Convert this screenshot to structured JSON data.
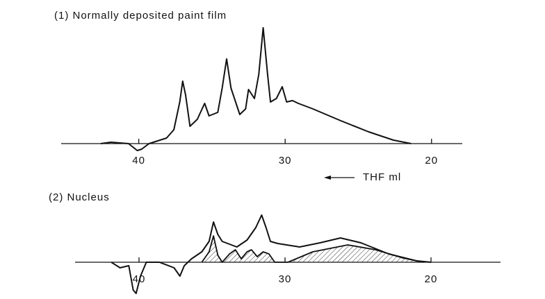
{
  "chart_data": [
    {
      "type": "line",
      "title": "(1)  Normally deposited paint film",
      "annotation": "THF ml",
      "xlim": [
        45.3,
        17.9
      ],
      "xticks": [
        40,
        30,
        20
      ],
      "ylim": [
        -20,
        180
      ],
      "series": [
        {
          "color": "#111111",
          "x": [
            42.6,
            41.9,
            40.7,
            40.1,
            39.8,
            39.3,
            38.1,
            37.6,
            37.2,
            37.0,
            36.8,
            36.5,
            36.0,
            35.5,
            35.2,
            34.6,
            34.3,
            34.0,
            33.7,
            33.1,
            32.7,
            32.5,
            32.1,
            31.8,
            31.5,
            31.2,
            31.0,
            30.6,
            30.2,
            29.9,
            29.5,
            29.1,
            28.1,
            26.2,
            24.3,
            22.6,
            21.4
          ],
          "values": [
            0,
            2,
            0,
            -10,
            -8,
            0,
            8,
            20,
            60,
            90,
            70,
            25,
            35,
            58,
            40,
            45,
            80,
            122,
            80,
            42,
            50,
            78,
            65,
            100,
            167,
            100,
            60,
            65,
            82,
            60,
            62,
            58,
            50,
            33,
            17,
            5,
            0
          ]
        }
      ]
    },
    {
      "type": "line",
      "title": "(2)  Nucleus",
      "xlim": [
        44.38,
        15.24
      ],
      "xticks": [
        40,
        30,
        20
      ],
      "ylim": [
        -50,
        80
      ],
      "series": [
        {
          "color": "#111111",
          "x": [
            41.9,
            41.3,
            40.7,
            40.4,
            40.2,
            39.9,
            39.5,
            38.6,
            37.6,
            37.2,
            36.9,
            36.4,
            35.7,
            35.2,
            34.9,
            34.6,
            34.3,
            33.3,
            32.6,
            32.0,
            31.6,
            31.3,
            31.0,
            30.5,
            29.0,
            27.6,
            26.2,
            24.8,
            22.9,
            21.0,
            20.0
          ],
          "values": [
            0,
            -8,
            -5,
            -40,
            -45,
            -20,
            0,
            0,
            -8,
            -20,
            -5,
            5,
            15,
            30,
            58,
            40,
            30,
            22,
            32,
            50,
            68,
            50,
            30,
            27,
            22,
            28,
            35,
            28,
            12,
            2,
            0
          ]
        },
        {
          "color": "#111111",
          "hatch": true,
          "x": [
            35.7,
            35.2,
            34.9,
            34.6,
            34.3,
            33.8,
            33.4,
            33.0,
            32.6,
            32.3,
            31.9,
            31.5,
            31.1,
            30.7,
            29.8,
            28.1,
            25.7,
            23.8,
            21.9,
            20.5
          ],
          "values": [
            0,
            15,
            38,
            10,
            0,
            12,
            18,
            5,
            15,
            18,
            8,
            15,
            12,
            0,
            0,
            15,
            25,
            18,
            6,
            0
          ]
        }
      ]
    }
  ]
}
